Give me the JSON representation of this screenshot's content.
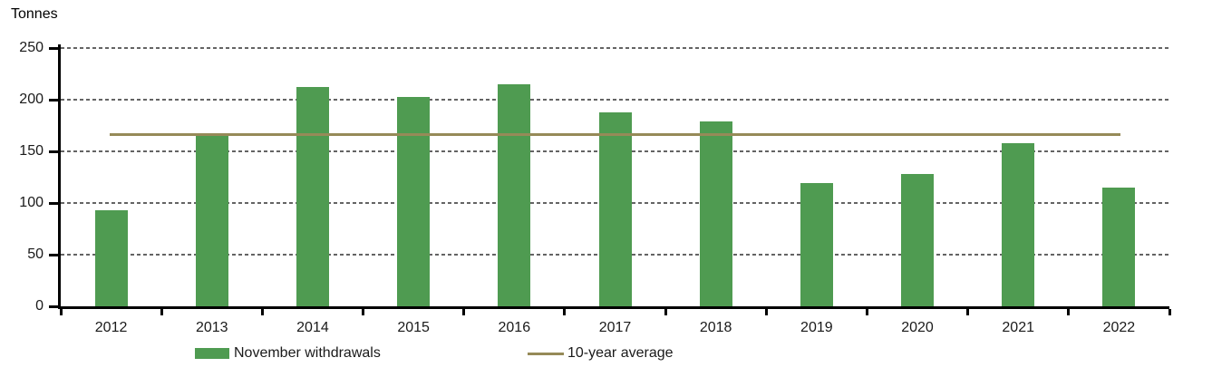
{
  "chart_data": {
    "type": "bar",
    "title": "",
    "ylabel": "Tonnes",
    "xlabel": "",
    "categories": [
      "2012",
      "2013",
      "2014",
      "2015",
      "2016",
      "2017",
      "2018",
      "2019",
      "2020",
      "2021",
      "2022"
    ],
    "series": [
      {
        "name": "November withdrawals",
        "type": "bar",
        "color": "#4f9b51",
        "values": [
          93,
          166,
          212,
          203,
          215,
          188,
          179,
          119,
          128,
          158,
          115
        ]
      },
      {
        "name": "10-year average",
        "type": "line",
        "color": "#968a58",
        "constant_value": 166,
        "x_span": [
          "2012",
          "2022"
        ]
      }
    ],
    "ylim": [
      0,
      250
    ],
    "yticks": [
      0,
      50,
      100,
      150,
      200,
      250
    ],
    "grid": {
      "horizontal": true,
      "style": "dashed",
      "color": "#646464"
    },
    "legend_position": "bottom",
    "axis_color": "#000000",
    "text_color": "#1a1a1a"
  },
  "legend": {
    "items": [
      {
        "label": "November withdrawals",
        "marker": "square",
        "color": "#4f9b51"
      },
      {
        "label": "10-year average",
        "marker": "line",
        "color": "#968a58"
      }
    ]
  }
}
